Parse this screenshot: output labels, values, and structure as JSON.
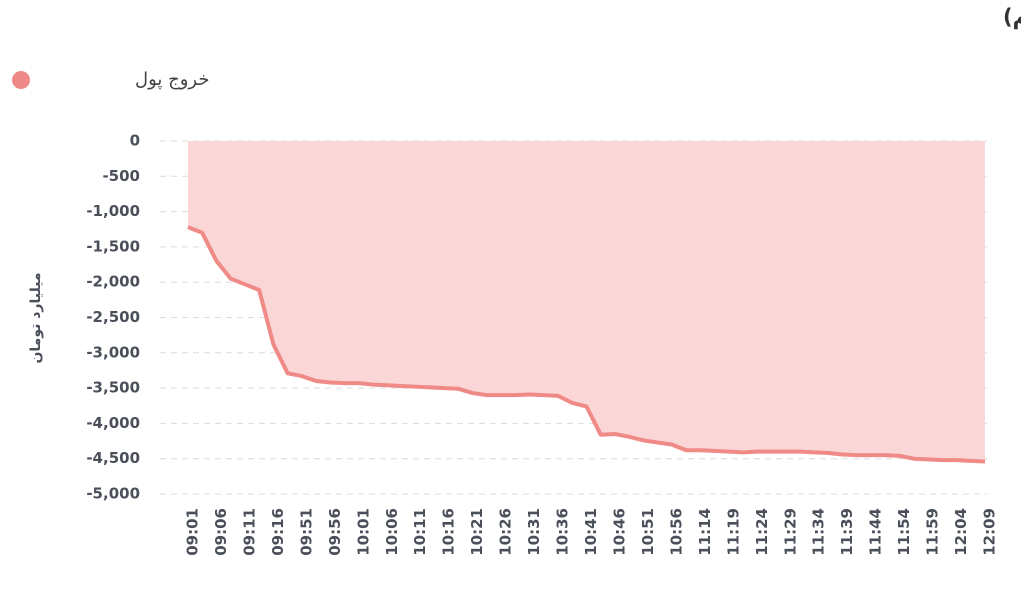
{
  "chart_data": {
    "type": "area",
    "title": "روند تغییر مالکیت حقیقی (سهام و حق تقدم)",
    "y_label": "میلیارد تومان",
    "categories": [
      "09:01",
      null,
      "09:06",
      null,
      "09:11",
      null,
      "09:16",
      null,
      "09:51",
      null,
      "09:56",
      null,
      "10:01",
      null,
      "10:06",
      null,
      "10:11",
      null,
      "10:16",
      null,
      "10:21",
      null,
      "10:26",
      null,
      "10:31",
      null,
      "10:36",
      null,
      "10:41",
      null,
      "10:46",
      null,
      "10:51",
      null,
      "10:56",
      null,
      "11:14",
      null,
      "11:19",
      null,
      "11:24",
      null,
      "11:29",
      null,
      "11:34",
      null,
      "11:39",
      null,
      "11:44",
      null,
      "11:54",
      null,
      "11:59",
      null,
      "12:04",
      null,
      "12:09"
    ],
    "series": [
      {
        "name": "خروج پول",
        "color": "#ef8a87",
        "fill": "#fad6d6",
        "values": [
          -1220,
          -1300,
          -1700,
          -1950,
          -2030,
          -2110,
          -2880,
          -3290,
          -3330,
          -3400,
          -3420,
          -3430,
          -3430,
          -3450,
          -3460,
          -3470,
          -3480,
          -3490,
          -3500,
          -3510,
          -3570,
          -3600,
          -3600,
          -3600,
          -3590,
          -3600,
          -3610,
          -3710,
          -3760,
          -4160,
          -4150,
          -4190,
          -4240,
          -4270,
          -4300,
          -4380,
          -4380,
          -4390,
          -4400,
          -4410,
          -4400,
          -4400,
          -4400,
          -4400,
          -4410,
          -4420,
          -4440,
          -4450,
          -4450,
          -4450,
          -4460,
          -4500,
          -4510,
          -4520,
          -4520,
          -4530,
          -4540
        ]
      }
    ],
    "ylim": [
      -5000,
      0
    ],
    "yticks": [
      0,
      -500,
      {
        "value": -1000,
        "label": "-1,000"
      },
      {
        "value": -1500,
        "label": "-1,500"
      },
      {
        "value": -2000,
        "label": "-2,000"
      },
      {
        "value": -2500,
        "label": "-2,500"
      },
      {
        "value": -3000,
        "label": "-3,000"
      },
      {
        "value": -3500,
        "label": "-3,500"
      },
      {
        "value": -4000,
        "label": "-4,000"
      },
      {
        "value": -4500,
        "label": "-4,500"
      },
      {
        "value": -5000,
        "label": "-5,000"
      }
    ],
    "grid": true
  }
}
